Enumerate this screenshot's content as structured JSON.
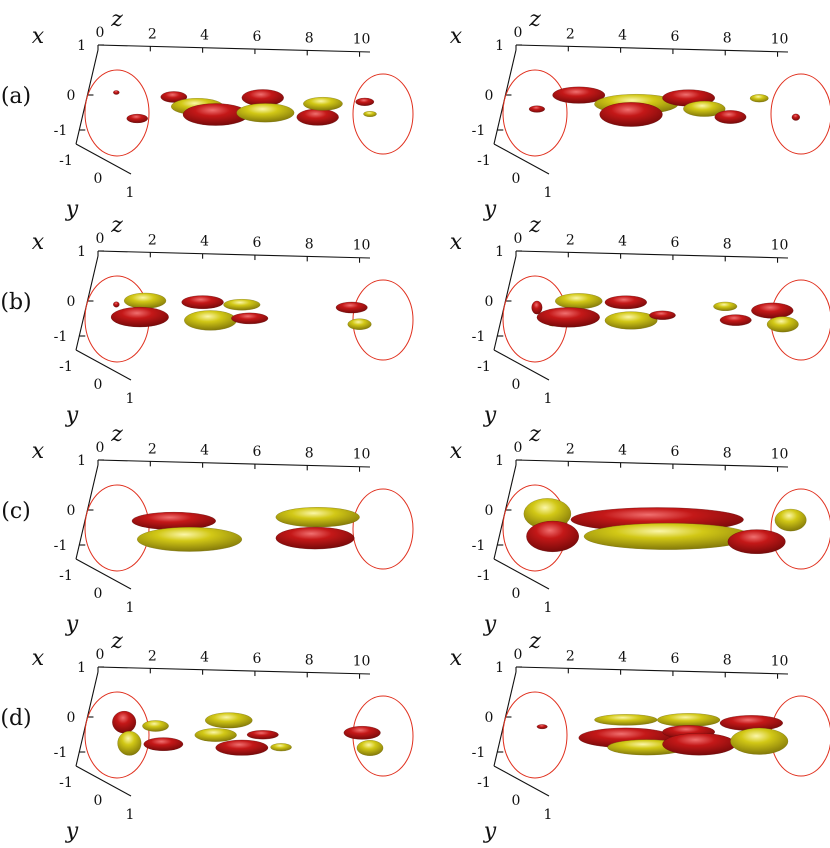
{
  "axes": {
    "x_label": "x",
    "y_label": "y",
    "z_label": "z",
    "z_ticks": [
      "0",
      "2",
      "4",
      "6",
      "8",
      "10"
    ],
    "x_ticks": [
      "1",
      "0",
      "-1"
    ],
    "y_ticks": [
      "-1",
      "0",
      "1"
    ]
  },
  "colors": {
    "red": "#b01010",
    "yellow": "#c8c010",
    "circle": "#e0301e",
    "axis": "#111111"
  },
  "rows": [
    {
      "label": "(a)",
      "panels": [
        {
          "blobs": [
            {
              "c": "red",
              "z": 0.7,
              "x": 0.1,
              "l": 0.1,
              "w": 0.03
            },
            {
              "c": "red",
              "z": 1.5,
              "x": -0.75,
              "l": 0.8,
              "w": 0.08
            },
            {
              "c": "red",
              "z": 2.9,
              "x": 0.0,
              "l": 1.0,
              "w": 0.1
            },
            {
              "c": "yellow",
              "z": 3.8,
              "x": -0.3,
              "l": 2.0,
              "w": 0.15
            },
            {
              "c": "red",
              "z": 4.5,
              "x": -0.55,
              "l": 2.5,
              "w": 0.2
            },
            {
              "c": "red",
              "z": 6.3,
              "x": 0.05,
              "l": 1.6,
              "w": 0.15
            },
            {
              "c": "yellow",
              "z": 6.4,
              "x": -0.45,
              "l": 2.2,
              "w": 0.17
            },
            {
              "c": "red",
              "z": 8.4,
              "x": -0.55,
              "l": 1.6,
              "w": 0.15
            },
            {
              "c": "yellow",
              "z": 8.6,
              "x": -0.1,
              "l": 1.5,
              "w": 0.12
            },
            {
              "c": "red",
              "z": 10.2,
              "x": 0.0,
              "l": 0.7,
              "w": 0.07
            },
            {
              "c": "yellow",
              "z": 10.4,
              "x": -0.4,
              "l": 0.5,
              "w": 0.05
            }
          ]
        },
        {
          "blobs": [
            {
              "c": "red",
              "z": 0.8,
              "x": -0.45,
              "l": 0.6,
              "w": 0.06
            },
            {
              "c": "red",
              "z": 2.4,
              "x": 0.05,
              "l": 2.0,
              "w": 0.15
            },
            {
              "c": "yellow",
              "z": 4.6,
              "x": -0.2,
              "l": 3.2,
              "w": 0.18
            },
            {
              "c": "red",
              "z": 4.4,
              "x": -0.55,
              "l": 2.4,
              "w": 0.22
            },
            {
              "c": "red",
              "z": 6.6,
              "x": 0.05,
              "l": 2.0,
              "w": 0.15
            },
            {
              "c": "yellow",
              "z": 7.2,
              "x": -0.3,
              "l": 1.6,
              "w": 0.14
            },
            {
              "c": "red",
              "z": 8.2,
              "x": -0.55,
              "l": 1.2,
              "w": 0.12
            },
            {
              "c": "yellow",
              "z": 9.3,
              "x": 0.1,
              "l": 0.7,
              "w": 0.07
            },
            {
              "c": "red",
              "z": 10.7,
              "x": -0.5,
              "l": 0.3,
              "w": 0.06
            }
          ]
        }
      ]
    },
    {
      "label": "(b)",
      "panels": [
        {
          "blobs": [
            {
              "c": "red",
              "z": 0.7,
              "x": -0.1,
              "l": 0.2,
              "w": 0.05
            },
            {
              "c": "yellow",
              "z": 1.8,
              "x": 0.05,
              "l": 1.6,
              "w": 0.14
            },
            {
              "c": "red",
              "z": 1.6,
              "x": -0.5,
              "l": 2.2,
              "w": 0.18
            },
            {
              "c": "red",
              "z": 4.0,
              "x": 0.05,
              "l": 1.6,
              "w": 0.12
            },
            {
              "c": "yellow",
              "z": 4.3,
              "x": -0.55,
              "l": 2.0,
              "w": 0.18
            },
            {
              "c": "yellow",
              "z": 5.5,
              "x": 0.0,
              "l": 1.4,
              "w": 0.1
            },
            {
              "c": "red",
              "z": 5.8,
              "x": -0.45,
              "l": 1.4,
              "w": 0.1
            },
            {
              "c": "red",
              "z": 9.7,
              "x": 0.0,
              "l": 1.2,
              "w": 0.1
            },
            {
              "c": "yellow",
              "z": 10.0,
              "x": -0.55,
              "l": 0.9,
              "w": 0.1
            }
          ]
        },
        {
          "blobs": [
            {
              "c": "red",
              "z": 0.8,
              "x": -0.2,
              "l": 0.4,
              "w": 0.12
            },
            {
              "c": "yellow",
              "z": 1.4,
              "x": -0.55,
              "l": 0.6,
              "w": 0.14
            },
            {
              "c": "yellow",
              "z": 2.4,
              "x": 0.05,
              "l": 1.8,
              "w": 0.14
            },
            {
              "c": "red",
              "z": 2.0,
              "x": -0.5,
              "l": 2.4,
              "w": 0.18
            },
            {
              "c": "red",
              "z": 4.2,
              "x": 0.05,
              "l": 1.6,
              "w": 0.12
            },
            {
              "c": "yellow",
              "z": 4.4,
              "x": -0.55,
              "l": 2.0,
              "w": 0.16
            },
            {
              "c": "red",
              "z": 5.6,
              "x": -0.35,
              "l": 1.0,
              "w": 0.08
            },
            {
              "c": "yellow",
              "z": 8.0,
              "x": 0.0,
              "l": 0.9,
              "w": 0.08
            },
            {
              "c": "red",
              "z": 8.4,
              "x": -0.45,
              "l": 1.2,
              "w": 0.1
            },
            {
              "c": "red",
              "z": 9.8,
              "x": -0.1,
              "l": 1.6,
              "w": 0.14
            },
            {
              "c": "yellow",
              "z": 10.2,
              "x": -0.55,
              "l": 1.2,
              "w": 0.14
            }
          ]
        }
      ]
    },
    {
      "label": "(c)",
      "panels": [
        {
          "blobs": [
            {
              "c": "red",
              "z": 2.9,
              "x": -0.3,
              "l": 3.2,
              "w": 0.16
            },
            {
              "c": "yellow",
              "z": 3.5,
              "x": -0.9,
              "l": 4.0,
              "w": 0.22
            },
            {
              "c": "yellow",
              "z": 8.4,
              "x": -0.05,
              "l": 3.2,
              "w": 0.18
            },
            {
              "c": "red",
              "z": 8.3,
              "x": -0.75,
              "l": 3.0,
              "w": 0.2
            }
          ]
        },
        {
          "blobs": [
            {
              "c": "yellow",
              "z": 1.2,
              "x": -0.1,
              "l": 1.8,
              "w": 0.28
            },
            {
              "c": "red",
              "z": 1.4,
              "x": -0.85,
              "l": 2.0,
              "w": 0.28
            },
            {
              "c": "red",
              "z": 5.4,
              "x": -0.2,
              "l": 6.6,
              "w": 0.22
            },
            {
              "c": "yellow",
              "z": 5.8,
              "x": -0.75,
              "l": 6.4,
              "w": 0.24
            },
            {
              "c": "red",
              "z": 9.2,
              "x": -0.85,
              "l": 2.2,
              "w": 0.22
            },
            {
              "c": "yellow",
              "z": 10.5,
              "x": -0.1,
              "l": 1.2,
              "w": 0.2
            }
          ]
        }
      ]
    },
    {
      "label": "(d)",
      "panels": [
        {
          "blobs": [
            {
              "c": "red",
              "z": 1.0,
              "x": -0.15,
              "l": 0.9,
              "w": 0.2
            },
            {
              "c": "yellow",
              "z": 1.2,
              "x": -0.85,
              "l": 0.9,
              "w": 0.22
            },
            {
              "c": "yellow",
              "z": 2.2,
              "x": -0.25,
              "l": 1.0,
              "w": 0.1
            },
            {
              "c": "red",
              "z": 2.5,
              "x": -0.85,
              "l": 1.5,
              "w": 0.12
            },
            {
              "c": "yellow",
              "z": 5.0,
              "x": 0.0,
              "l": 1.8,
              "w": 0.14
            },
            {
              "c": "red",
              "z": 6.3,
              "x": -0.45,
              "l": 1.2,
              "w": 0.08
            },
            {
              "c": "yellow",
              "z": 4.5,
              "x": -0.5,
              "l": 1.6,
              "w": 0.12
            },
            {
              "c": "red",
              "z": 5.5,
              "x": -0.9,
              "l": 2.0,
              "w": 0.14
            },
            {
              "c": "yellow",
              "z": 7.0,
              "x": -0.85,
              "l": 0.8,
              "w": 0.07
            },
            {
              "c": "red",
              "z": 10.1,
              "x": -0.3,
              "l": 1.4,
              "w": 0.12
            },
            {
              "c": "yellow",
              "z": 10.4,
              "x": -0.8,
              "l": 1.0,
              "w": 0.14
            }
          ]
        },
        {
          "blobs": [
            {
              "c": "red",
              "z": 1.0,
              "x": -0.3,
              "l": 0.4,
              "w": 0.04
            },
            {
              "c": "yellow",
              "z": 4.2,
              "x": 0.0,
              "l": 2.4,
              "w": 0.1
            },
            {
              "c": "red",
              "z": 4.2,
              "x": -0.6,
              "l": 3.6,
              "w": 0.18
            },
            {
              "c": "yellow",
              "z": 5.0,
              "x": -0.9,
              "l": 3.0,
              "w": 0.14
            },
            {
              "c": "yellow",
              "z": 6.6,
              "x": 0.05,
              "l": 2.4,
              "w": 0.12
            },
            {
              "c": "red",
              "z": 6.6,
              "x": -0.35,
              "l": 2.0,
              "w": 0.12
            },
            {
              "c": "red",
              "z": 7.0,
              "x": -0.75,
              "l": 2.8,
              "w": 0.2
            },
            {
              "c": "red",
              "z": 9.0,
              "x": 0.0,
              "l": 2.4,
              "w": 0.14
            },
            {
              "c": "yellow",
              "z": 9.3,
              "x": -0.6,
              "l": 2.2,
              "w": 0.24
            }
          ]
        }
      ]
    }
  ]
}
